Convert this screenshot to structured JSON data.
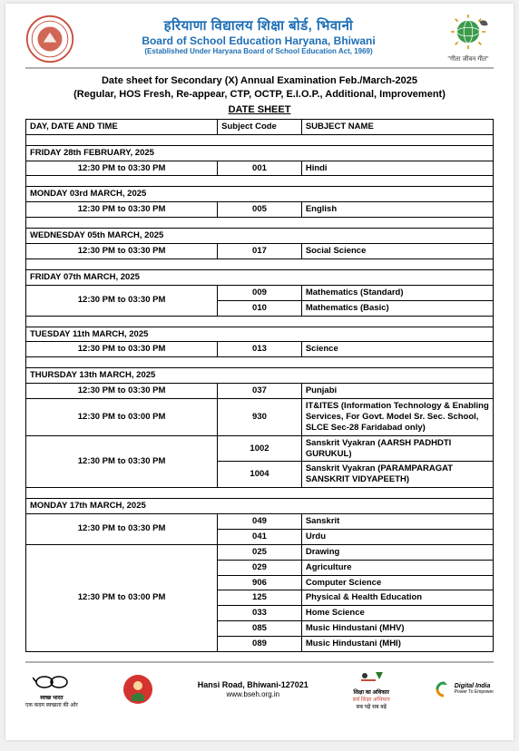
{
  "header": {
    "hindi_title": "हरियाणा विद्यालय शिक्षा बोर्ड, भिवानी",
    "eng_title": "Board of School Education Haryana, Bhiwani",
    "established": "(Established Under Haryana Board of School Education Act, 1969)",
    "motto": "\"गीता जीवन गीत\""
  },
  "main_heading_l1": "Date sheet for Secondary (X) Annual Examination Feb./March-2025",
  "main_heading_l2": "(Regular, HOS Fresh, Re-appear, CTP, OCTP, E.I.O.P., Additional, Improvement)",
  "date_sheet_label": "DATE SHEET",
  "table": {
    "headers": {
      "c1": "DAY, DATE AND TIME",
      "c2": "Subject Code",
      "c3": "SUBJECT NAME"
    },
    "days": [
      {
        "day": "FRIDAY 28th FEBRUARY, 2025",
        "rows": [
          {
            "time": "12:30 PM to 03:30 PM",
            "code": "001",
            "subject": "Hindi"
          }
        ]
      },
      {
        "day": "MONDAY 03rd MARCH, 2025",
        "rows": [
          {
            "time": "12:30 PM to 03:30 PM",
            "code": "005",
            "subject": "English"
          }
        ]
      },
      {
        "day": "WEDNESDAY 05th MARCH, 2025",
        "rows": [
          {
            "time": "12:30 PM to 03:30 PM",
            "code": "017",
            "subject": "Social Science"
          }
        ]
      },
      {
        "day": "FRIDAY 07th MARCH, 2025",
        "rows": [
          {
            "time": "12:30 PM to 03:30 PM",
            "code": "009",
            "subject": "Mathematics (Standard)",
            "rowspan": 2
          },
          {
            "code": "010",
            "subject": "Mathematics (Basic)"
          }
        ]
      },
      {
        "day": "TUESDAY 11th MARCH, 2025",
        "rows": [
          {
            "time": "12:30 PM to 03:30 PM",
            "code": "013",
            "subject": "Science"
          }
        ]
      },
      {
        "day": "THURSDAY 13th MARCH, 2025",
        "rows": [
          {
            "time": "12:30 PM to 03:30 PM",
            "code": "037",
            "subject": "Punjabi"
          },
          {
            "time": "12:30 PM to 03:00 PM",
            "code": "930",
            "subject": "IT&ITES (Information Technology & Enabling Services, For Govt. Model Sr. Sec. School, SLCE Sec-28 Faridabad only)"
          },
          {
            "time": "12:30 PM to 03:30 PM",
            "code": "1002",
            "subject": "Sanskrit Vyakran (AARSH PADHDTI GURUKUL)",
            "rowspan": 2
          },
          {
            "code": "1004",
            "subject": "Sanskrit Vyakran (PARAMPARAGAT SANSKRIT  VIDYAPEETH)"
          }
        ]
      },
      {
        "day": "MONDAY 17th MARCH, 2025",
        "rows": [
          {
            "time": "12:30 PM to 03:30 PM",
            "code": "049",
            "subject": "Sanskrit",
            "rowspan": 2
          },
          {
            "code": "041",
            "subject": "Urdu"
          },
          {
            "time": "12:30 PM to 03:00 PM",
            "code": "025",
            "subject": "Drawing",
            "rowspan": 7
          },
          {
            "code": "029",
            "subject": "Agriculture"
          },
          {
            "code": "906",
            "subject": "Computer Science"
          },
          {
            "code": "125",
            "subject": "Physical & Health Education"
          },
          {
            "code": "033",
            "subject": "Home Science"
          },
          {
            "code": "085",
            "subject": "Music Hindustani (MHV)"
          },
          {
            "code": "089",
            "subject": "Music Hindustani (MHI)"
          }
        ]
      }
    ]
  },
  "footer": {
    "swachh": "एक कदम स्वच्छता की ओर",
    "address": "Hansi Road, Bhiwani-127021",
    "url": "www.bseh.org.in",
    "shiksha_l1": "शिक्षा का अधिकार",
    "shiksha_l2": "सर्व शिक्षा अभियान",
    "shiksha_l3": "सब पढ़ें सब बढ़ें",
    "digital_l1": "Digital India",
    "digital_l2": "Power To Empower"
  },
  "colors": {
    "header_blue": "#1e6fb5",
    "seal_red": "#c94b3a",
    "border_gray": "#b0b0b0"
  }
}
